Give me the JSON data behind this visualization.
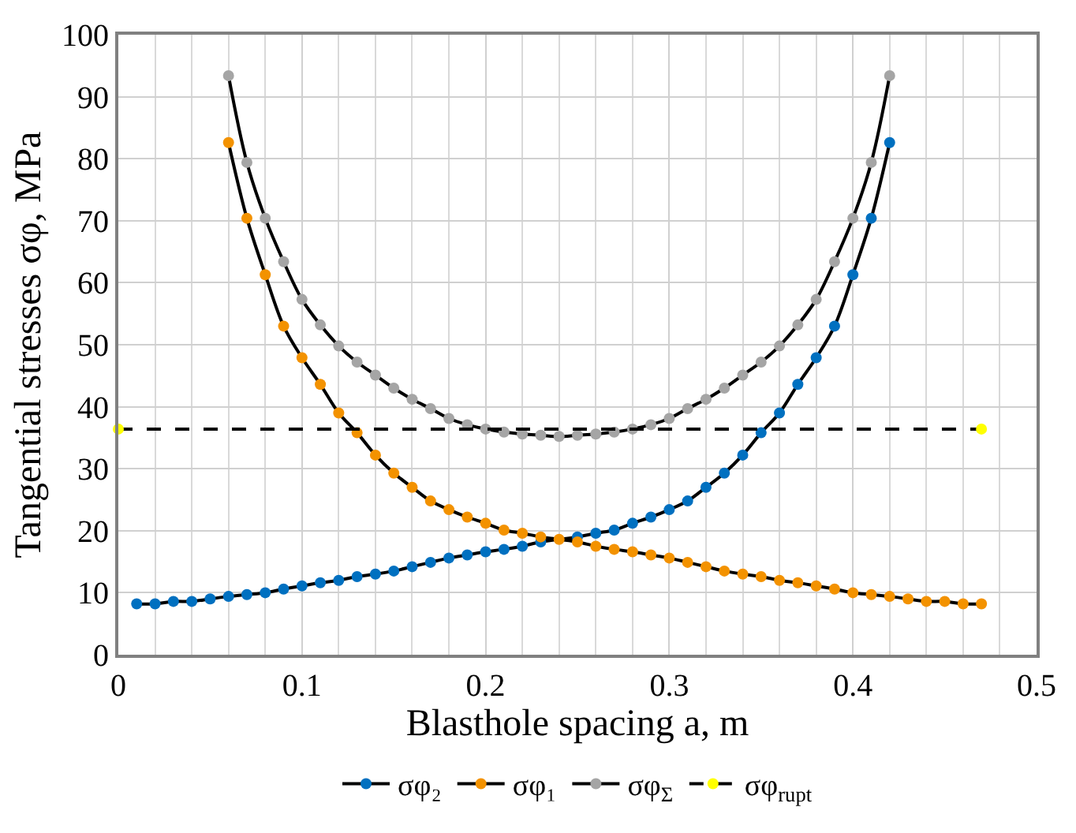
{
  "chart_data": {
    "type": "line",
    "xlabel": "Blasthole spacing a, m",
    "ylabel": "Tangential stresses σφ, MPa",
    "xlim": [
      0,
      0.5
    ],
    "xticks": [
      0,
      0.1,
      0.2,
      0.3,
      0.4,
      0.5
    ],
    "ylim": [
      0,
      100
    ],
    "yticks": [
      0,
      10,
      20,
      30,
      40,
      50,
      60,
      70,
      80,
      90,
      100
    ],
    "grid": true,
    "legend": "bottom",
    "marker": "circle",
    "line_style": "solid",
    "series": [
      {
        "name": "σφ₂",
        "color": "#0070c0",
        "x": [
          0.01,
          0.02,
          0.03,
          0.04,
          0.05,
          0.06,
          0.07,
          0.08,
          0.09,
          0.1,
          0.11,
          0.12,
          0.13,
          0.14,
          0.15,
          0.16,
          0.17,
          0.18,
          0.19,
          0.2,
          0.21,
          0.22,
          0.23,
          0.24,
          0.25,
          0.26,
          0.27,
          0.28,
          0.29,
          0.3,
          0.31,
          0.32,
          0.33,
          0.34,
          0.35,
          0.36,
          0.37,
          0.38,
          0.39,
          0.4,
          0.41,
          0.42
        ],
        "values": [
          8.2,
          8.2,
          8.6,
          8.6,
          9.0,
          9.4,
          9.7,
          10.0,
          10.6,
          11.1,
          11.6,
          12.0,
          12.6,
          13.0,
          13.5,
          14.2,
          14.9,
          15.6,
          16.1,
          16.6,
          17.0,
          17.5,
          18.2,
          null,
          19.0,
          19.6,
          20.1,
          21.2,
          22.2,
          23.4,
          24.8,
          27.0,
          29.3,
          32.2,
          35.8,
          39.0,
          43.6,
          47.9,
          53.0,
          61.3,
          70.4,
          82.6
        ]
      },
      {
        "name": "σφ₁",
        "color": "#f39200",
        "x": [
          0.06,
          0.07,
          0.08,
          0.09,
          0.1,
          0.11,
          0.12,
          0.13,
          0.14,
          0.15,
          0.16,
          0.17,
          0.18,
          0.19,
          0.2,
          0.21,
          0.22,
          0.23,
          0.24,
          0.25,
          0.26,
          0.27,
          0.28,
          0.29,
          0.3,
          0.31,
          0.32,
          0.33,
          0.34,
          0.35,
          0.36,
          0.37,
          0.38,
          0.39,
          0.4,
          0.41,
          0.42,
          0.43,
          0.44,
          0.45,
          0.46,
          0.47
        ],
        "values": [
          82.6,
          70.4,
          61.3,
          53.0,
          47.9,
          43.6,
          39.0,
          35.8,
          32.2,
          29.3,
          27.0,
          24.8,
          23.4,
          22.2,
          21.2,
          20.1,
          19.6,
          19.0,
          18.6,
          18.2,
          17.5,
          17.0,
          16.6,
          16.1,
          15.6,
          14.9,
          14.2,
          13.5,
          13.0,
          12.6,
          12.0,
          11.6,
          11.1,
          10.6,
          10.0,
          9.7,
          9.4,
          9.0,
          8.6,
          8.6,
          8.2,
          8.2
        ]
      },
      {
        "name": "σφ$_{Σ}$",
        "color": "#a5a5a5",
        "x": [
          0.06,
          0.07,
          0.08,
          0.09,
          0.1,
          0.11,
          0.12,
          0.13,
          0.14,
          0.15,
          0.16,
          0.17,
          0.18,
          0.19,
          0.2,
          0.21,
          0.22,
          0.23,
          0.24,
          0.25,
          0.26,
          0.27,
          0.28,
          0.29,
          0.3,
          0.31,
          0.32,
          0.33,
          0.34,
          0.35,
          0.36,
          0.37,
          0.38,
          0.39,
          0.4,
          0.41,
          0.42
        ],
        "values": [
          93.4,
          79.4,
          70.4,
          63.4,
          57.3,
          53.2,
          49.8,
          47.2,
          45.1,
          43.0,
          41.2,
          39.7,
          38.1,
          37.1,
          36.4,
          35.9,
          35.6,
          35.4,
          35.2,
          35.4,
          35.6,
          35.9,
          36.4,
          37.1,
          38.1,
          39.7,
          41.2,
          43.0,
          45.1,
          47.2,
          49.8,
          53.2,
          57.3,
          63.4,
          70.4,
          79.4,
          93.4
        ]
      },
      {
        "name": "σφ$_{rupt}$",
        "color": "#ffff00",
        "line_style": "dashed",
        "x": [
          0,
          0.47
        ],
        "values": [
          36.4,
          36.4
        ]
      }
    ]
  }
}
